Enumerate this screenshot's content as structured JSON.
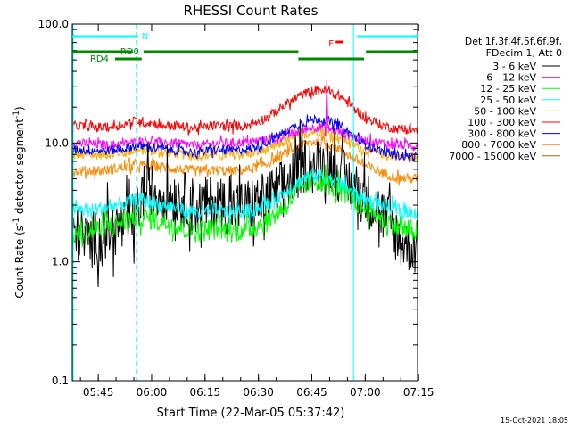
{
  "chart_data": {
    "type": "line",
    "title": "RHESSI Count Rates",
    "xlabel": "Start Time (22-Mar-05 05:37:42)",
    "ylabel": "Count Rate (s⁻¹ detector segment⁻¹)",
    "ylabel_parts": {
      "pre": "Count Rate (s",
      "sup1": "-1",
      "mid": " detector segment",
      "sup2": "-1",
      "post": ")"
    },
    "yscale": "log",
    "ylim": [
      0.1,
      100
    ],
    "xlim_minutes": [
      0,
      97
    ],
    "x_ticks": [
      {
        "label": "05:45",
        "minute": 7.3
      },
      {
        "label": "06:00",
        "minute": 22.3
      },
      {
        "label": "06:15",
        "minute": 37.3
      },
      {
        "label": "06:30",
        "minute": 52.3
      },
      {
        "label": "06:45",
        "minute": 67.3
      },
      {
        "label": "07:00",
        "minute": 82.3
      },
      {
        "label": "07:15",
        "minute": 97.3
      }
    ],
    "y_ticks": [
      {
        "label": "0.1",
        "value": 0.1
      },
      {
        "label": "1.0",
        "value": 1.0
      },
      {
        "label": "10.0",
        "value": 10.0
      },
      {
        "label": "100.0",
        "value": 100.0
      }
    ],
    "legend_header": [
      "Det 1f,3f,4f,5f,6f,9f,",
      "FDecim 1, Att 0"
    ],
    "series": [
      {
        "name": "3 - 6 keV",
        "color": "#000000",
        "minutes": [
          0,
          5,
          10,
          15,
          18,
          20,
          25,
          30,
          35,
          40,
          45,
          50,
          55,
          60,
          64,
          66,
          68,
          70,
          72,
          75,
          78,
          82,
          87,
          92,
          97
        ],
        "values": [
          1.8,
          1.5,
          1.8,
          2.0,
          2.3,
          4.0,
          3.8,
          3.5,
          2.9,
          3.2,
          2.8,
          3.0,
          3.4,
          4.4,
          6.0,
          6.8,
          6.2,
          6.5,
          7.0,
          5.5,
          4.5,
          3.5,
          2.5,
          1.5,
          1.3
        ]
      },
      {
        "name": "6 - 12 keV",
        "color": "#ff00ff",
        "minutes": [
          0,
          10,
          15,
          18,
          20,
          25,
          30,
          35,
          40,
          45,
          50,
          55,
          60,
          64,
          66,
          68,
          70,
          72,
          75,
          78,
          82,
          87,
          92,
          97
        ],
        "values": [
          10.0,
          9.6,
          9.8,
          10.2,
          10.5,
          10.1,
          9.8,
          9.5,
          9.9,
          10.0,
          10.2,
          10.6,
          11.5,
          12.5,
          13.2,
          13.5,
          13.8,
          13.2,
          12.5,
          11.5,
          10.5,
          10.0,
          9.6,
          9.5
        ]
      },
      {
        "name": "12 - 25 keV",
        "color": "#00ff00",
        "minutes": [
          0,
          5,
          10,
          15,
          18,
          20,
          25,
          30,
          35,
          40,
          45,
          50,
          55,
          60,
          64,
          66,
          68,
          70,
          72,
          75,
          78,
          82,
          87,
          92,
          97
        ],
        "values": [
          1.7,
          1.8,
          2.0,
          2.2,
          2.4,
          2.4,
          2.2,
          2.0,
          1.8,
          1.9,
          1.8,
          1.9,
          2.2,
          3.0,
          4.0,
          4.6,
          4.8,
          4.8,
          4.5,
          4.0,
          3.5,
          2.8,
          2.3,
          1.9,
          1.8
        ]
      },
      {
        "name": "25 - 50 keV",
        "color": "#00ffff",
        "minutes": [
          0,
          5,
          10,
          15,
          18,
          20,
          25,
          30,
          35,
          40,
          45,
          50,
          55,
          60,
          64,
          66,
          68,
          70,
          72,
          75,
          78,
          82,
          87,
          92,
          97
        ],
        "values": [
          2.8,
          2.7,
          2.9,
          3.1,
          3.3,
          3.3,
          3.0,
          2.8,
          2.6,
          2.7,
          2.6,
          2.7,
          3.1,
          3.9,
          4.8,
          5.2,
          5.3,
          5.3,
          5.1,
          4.6,
          4.0,
          3.4,
          3.0,
          2.7,
          2.6
        ]
      },
      {
        "name": "50 - 100 keV",
        "color": "#ffaa00",
        "minutes": [
          0,
          10,
          15,
          18,
          20,
          25,
          30,
          35,
          40,
          45,
          50,
          55,
          60,
          64,
          66,
          68,
          70,
          72,
          75,
          78,
          82,
          87,
          92,
          97
        ],
        "values": [
          7.8,
          8.0,
          8.3,
          8.6,
          8.6,
          8.4,
          8.1,
          7.8,
          8.0,
          7.9,
          8.1,
          8.8,
          10.2,
          11.5,
          12.0,
          12.5,
          12.5,
          12.0,
          11.2,
          10.0,
          8.8,
          8.1,
          7.7,
          7.6
        ]
      },
      {
        "name": "100 - 300 keV",
        "color": "#ff0000",
        "minutes": [
          0,
          10,
          15,
          18,
          20,
          25,
          30,
          35,
          40,
          45,
          50,
          55,
          60,
          64,
          66,
          68,
          70,
          72,
          75,
          78,
          82,
          87,
          92,
          97
        ],
        "values": [
          14.0,
          13.5,
          14.5,
          15.5,
          15.0,
          14.2,
          13.8,
          13.3,
          14.0,
          13.8,
          14.2,
          16.5,
          21.0,
          25.0,
          26.5,
          27.5,
          28.0,
          27.0,
          25.0,
          21.0,
          16.5,
          14.0,
          13.0,
          12.8
        ]
      },
      {
        "name": "300 - 800 keV",
        "color": "#0000ff",
        "minutes": [
          0,
          10,
          15,
          18,
          20,
          25,
          30,
          35,
          40,
          45,
          50,
          55,
          60,
          64,
          66,
          68,
          70,
          72,
          75,
          78,
          82,
          87,
          92,
          97
        ],
        "values": [
          8.8,
          8.6,
          9.0,
          9.5,
          9.3,
          8.9,
          8.6,
          8.3,
          8.7,
          8.6,
          8.9,
          10.2,
          12.5,
          14.5,
          15.2,
          15.8,
          16.0,
          15.3,
          14.0,
          12.0,
          9.8,
          8.5,
          7.8,
          7.6
        ]
      },
      {
        "name": "800 - 7000 keV",
        "color": "#ff8800",
        "minutes": [
          0,
          10,
          15,
          18,
          20,
          25,
          30,
          35,
          40,
          45,
          50,
          55,
          60,
          64,
          66,
          68,
          70,
          72,
          75,
          78,
          82,
          87,
          92,
          97
        ],
        "values": [
          5.8,
          5.9,
          6.3,
          6.5,
          6.5,
          6.3,
          6.0,
          5.8,
          5.9,
          5.8,
          6.0,
          6.8,
          8.2,
          9.5,
          10.0,
          10.2,
          10.3,
          9.8,
          9.0,
          7.8,
          6.5,
          5.6,
          5.1,
          5.0
        ]
      },
      {
        "name": "7000 - 15000 keV",
        "color": "#aa6600",
        "minutes": [],
        "values": []
      }
    ],
    "flag_bars": [
      {
        "label": "N",
        "color": "#00ffff",
        "level": 0,
        "segments": [
          [
            0,
            18.5
          ],
          [
            80,
            97
          ]
        ]
      },
      {
        "label": "RD0",
        "color": "#008800",
        "level": 1,
        "segments": [
          [
            0,
            17
          ],
          [
            20,
            63.5
          ]
        ]
      },
      {
        "label": "",
        "color": "#008800",
        "level": 1,
        "segments": [
          [
            82.5,
            97
          ]
        ]
      },
      {
        "label": "RD4",
        "color": "#008800",
        "level": 2,
        "segments": [
          [
            12,
            19.5
          ],
          [
            63.5,
            82
          ]
        ]
      },
      {
        "label": "F",
        "color": "#ff0000",
        "level": 0.5,
        "segments": [
          [
            74,
            76
          ]
        ]
      }
    ],
    "vlines": [
      {
        "minute": 18.0,
        "color": "#00ffff",
        "style": "dashed"
      },
      {
        "minute": 79.0,
        "color": "#00ffff",
        "style": "solid"
      },
      {
        "minute": 97.0,
        "color": "#00ffff",
        "style": "dashed"
      }
    ],
    "footer": "15-Oct-2021 18:05"
  }
}
